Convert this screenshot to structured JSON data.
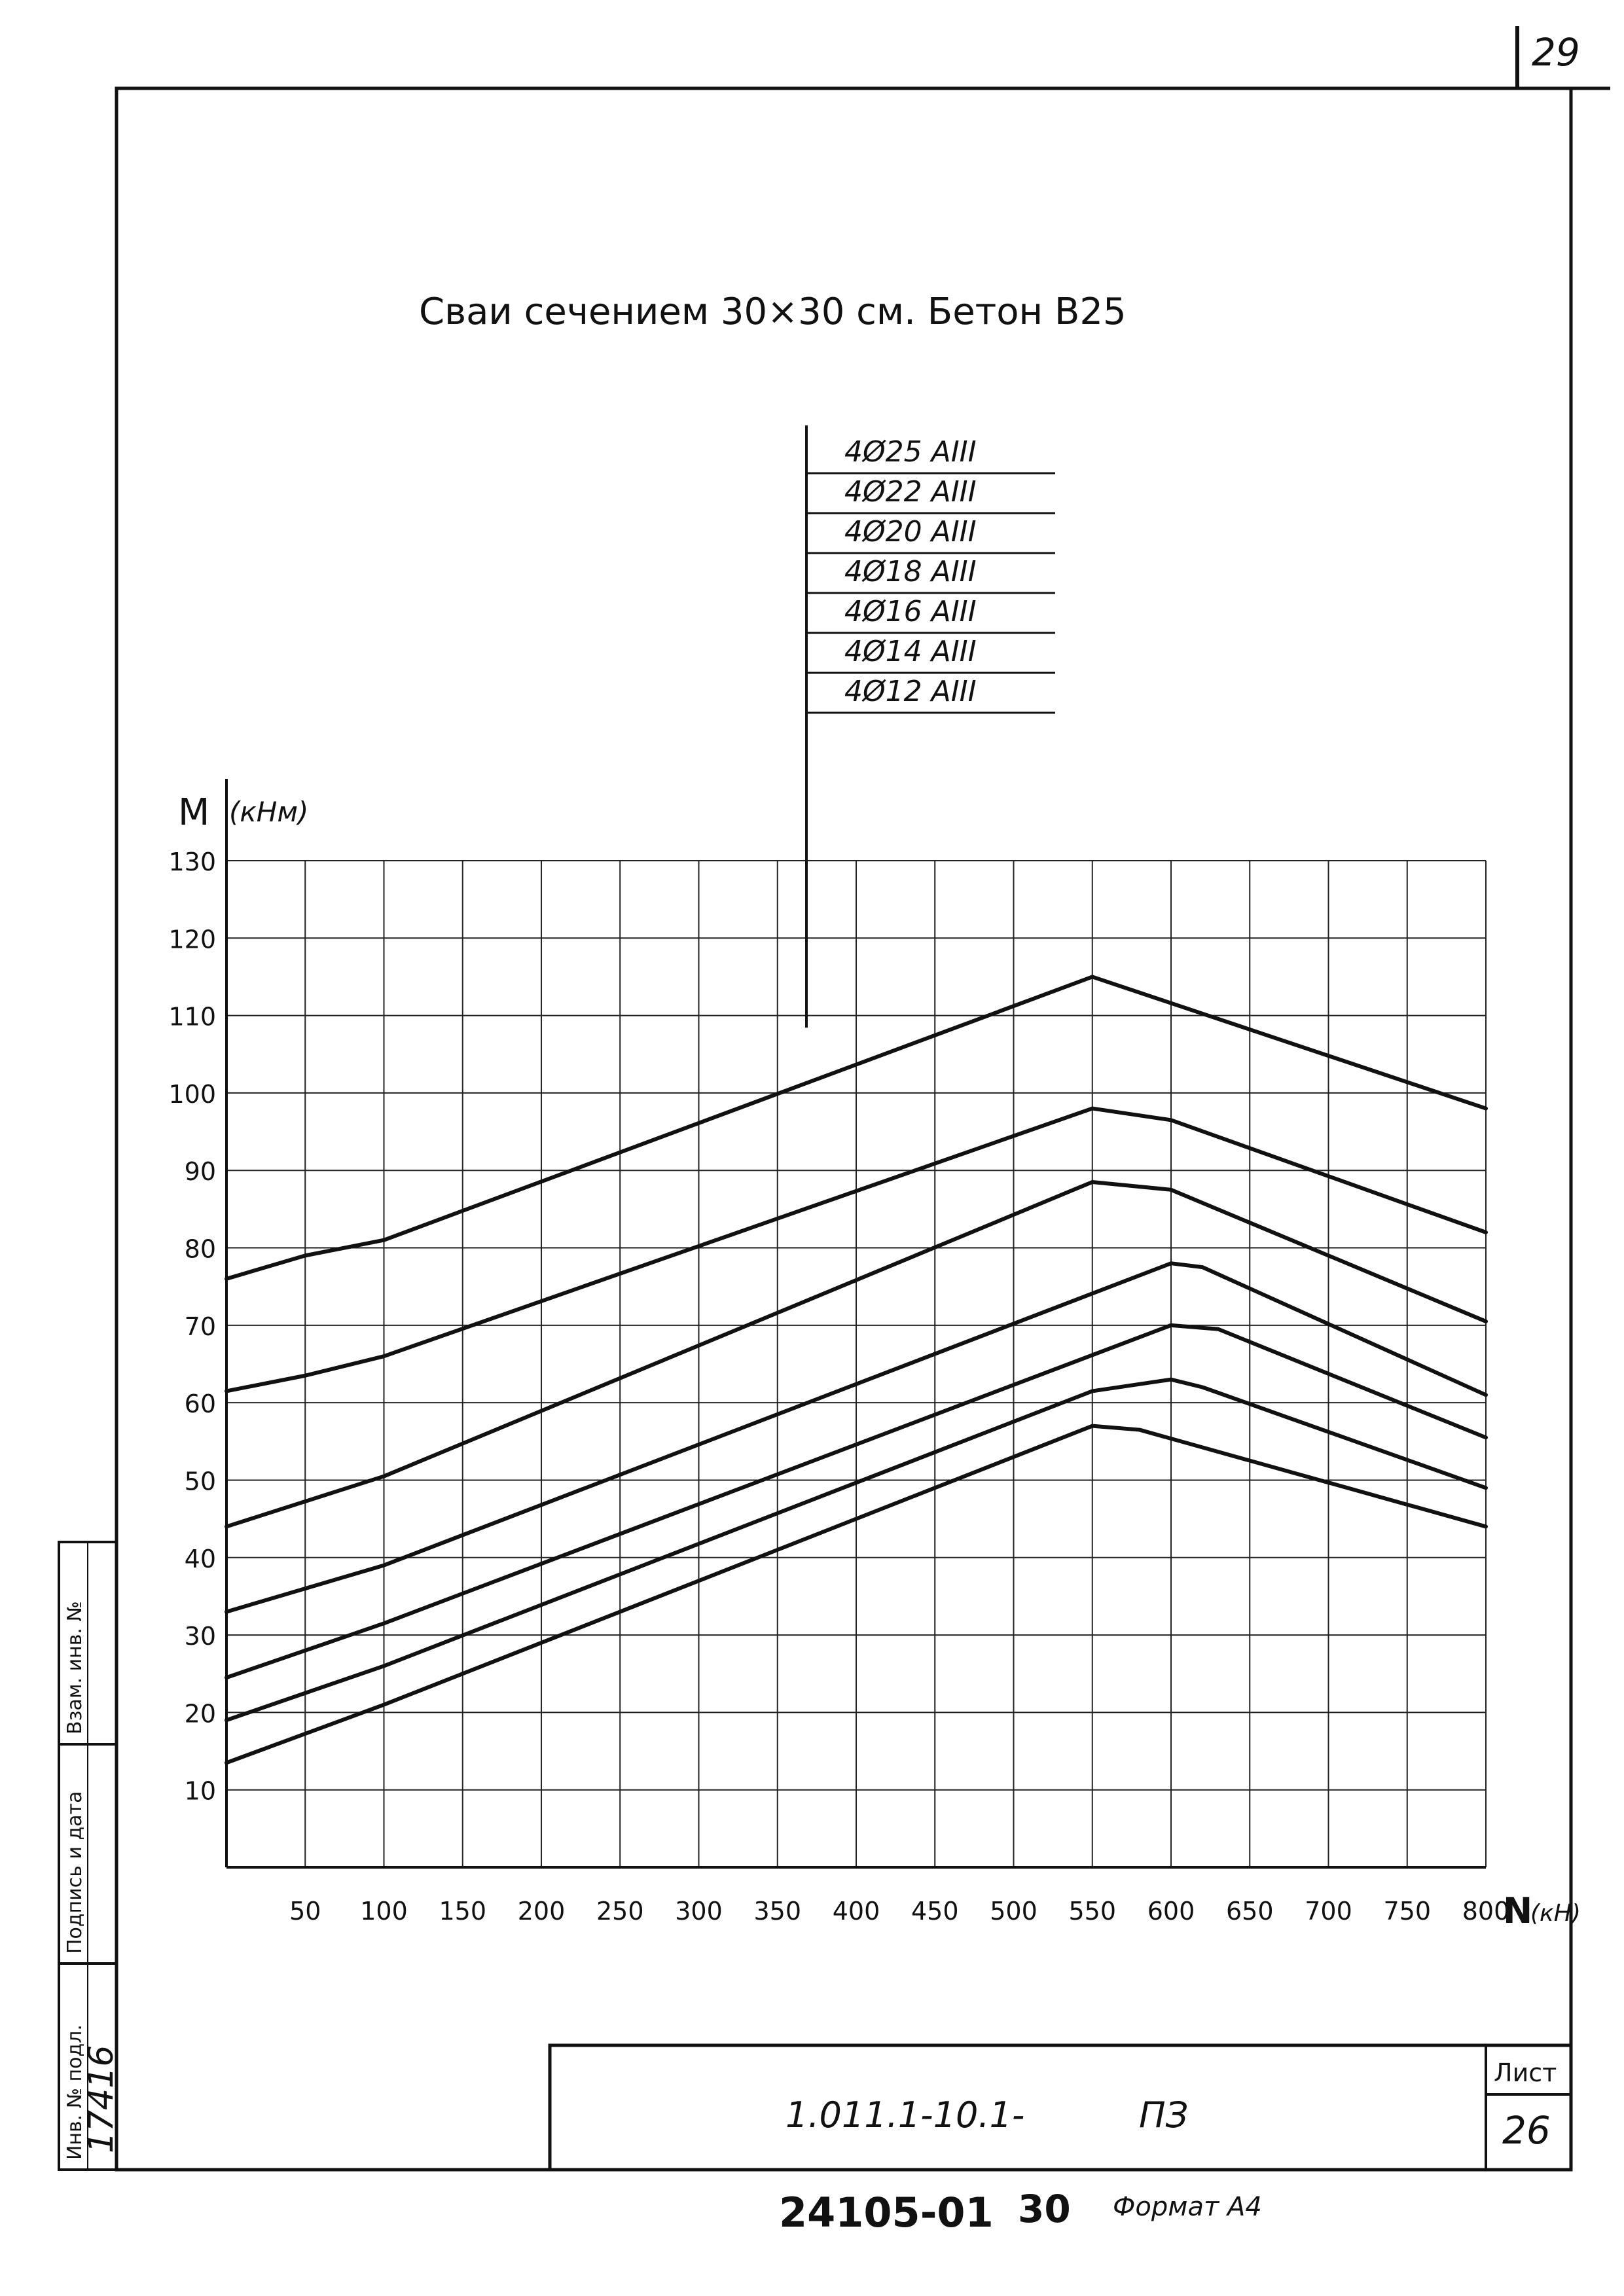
{
  "page": {
    "sheet_number_top": "29",
    "title": "Сваи сечением 30×30 см. Бетон В25"
  },
  "side_stamp": {
    "label_1": "Взам. инв. №",
    "label_2": "Подпись и дата",
    "label_3": "Инв. № подл.",
    "inv_number": "17416"
  },
  "title_block": {
    "doc_code": "1.011.1-10.1-",
    "section": "ПЗ",
    "sheet_label": "Лист",
    "sheet_number": "26"
  },
  "footer": {
    "order_number": "24105-01",
    "copy_number": "30",
    "format": "Формат А4"
  },
  "chart_data": {
    "type": "line",
    "ylabel": "M",
    "yunit": "(кНм)",
    "xlabel": "N",
    "xunit": "(кН)",
    "xlim": [
      0,
      800
    ],
    "ylim": [
      0,
      130
    ],
    "xticks": [
      50,
      100,
      150,
      200,
      250,
      300,
      350,
      400,
      450,
      500,
      550,
      600,
      650,
      700,
      750,
      800
    ],
    "yticks": [
      10,
      20,
      30,
      40,
      50,
      60,
      70,
      80,
      90,
      100,
      110,
      120,
      130
    ],
    "grid": true,
    "legend_position": "top-center",
    "series": [
      {
        "name": "4Ø25 АIII",
        "x": [
          0,
          50,
          100,
          550,
          800
        ],
        "y": [
          76,
          79,
          81,
          115,
          98
        ]
      },
      {
        "name": "4Ø22 АIII",
        "x": [
          0,
          50,
          100,
          550,
          600,
          800
        ],
        "y": [
          61.5,
          63.5,
          66,
          98,
          96.5,
          82
        ]
      },
      {
        "name": "4Ø20 АIII",
        "x": [
          0,
          100,
          550,
          600,
          800
        ],
        "y": [
          44,
          50.5,
          88.5,
          87.5,
          70.5
        ]
      },
      {
        "name": "4Ø18 АIII",
        "x": [
          0,
          100,
          600,
          620,
          800
        ],
        "y": [
          33,
          39,
          78,
          77.5,
          61
        ]
      },
      {
        "name": "4Ø16 АIII",
        "x": [
          0,
          100,
          600,
          630,
          800
        ],
        "y": [
          24.5,
          31.5,
          70,
          69.5,
          55.5
        ]
      },
      {
        "name": "4Ø14 АIII",
        "x": [
          0,
          100,
          550,
          600,
          620,
          800
        ],
        "y": [
          19,
          26,
          61.5,
          63,
          62,
          49
        ]
      },
      {
        "name": "4Ø12 АIII",
        "x": [
          0,
          100,
          550,
          580,
          800
        ],
        "y": [
          13.5,
          21,
          57,
          56.5,
          44
        ]
      }
    ]
  }
}
